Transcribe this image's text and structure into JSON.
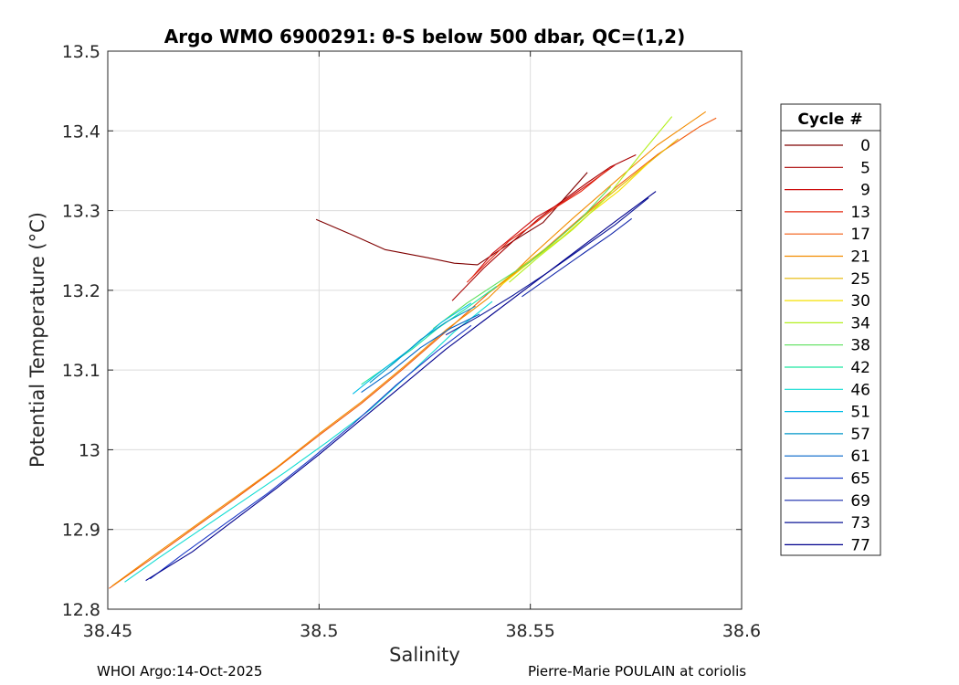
{
  "chart_data": {
    "type": "line",
    "title": "Argo WMO 6900291: θ-S below 500 dbar,  QC=(1,2)",
    "xlabel": "Salinity",
    "ylabel": "Potential Temperature (°C)",
    "xlim": [
      38.45,
      38.6
    ],
    "ylim": [
      12.8,
      13.5
    ],
    "xticks": [
      "38.45",
      "38.5",
      "38.55",
      "38.6"
    ],
    "yticks": [
      "12.8",
      "12.9",
      "13",
      "13.1",
      "13.2",
      "13.3",
      "13.4",
      "13.5"
    ],
    "grid": true,
    "legend": {
      "title": "Cycle #",
      "placement": "right-outside",
      "entries": [
        {
          "label": "0",
          "color": "#7f0000"
        },
        {
          "label": "5",
          "color": "#a80000"
        },
        {
          "label": "9",
          "color": "#cc0a0a"
        },
        {
          "label": "13",
          "color": "#e62810"
        },
        {
          "label": "17",
          "color": "#f25c10"
        },
        {
          "label": "21",
          "color": "#f28c00"
        },
        {
          "label": "25",
          "color": "#e6b800"
        },
        {
          "label": "30",
          "color": "#f5e000"
        },
        {
          "label": "34",
          "color": "#b4f020"
        },
        {
          "label": "38",
          "color": "#5ae05a"
        },
        {
          "label": "42",
          "color": "#1ee6a0"
        },
        {
          "label": "46",
          "color": "#10dcd2"
        },
        {
          "label": "51",
          "color": "#00bee6"
        },
        {
          "label": "57",
          "color": "#0096c8"
        },
        {
          "label": "61",
          "color": "#0064c8"
        },
        {
          "label": "65",
          "color": "#1e3cc8"
        },
        {
          "label": "69",
          "color": "#1428aa"
        },
        {
          "label": "73",
          "color": "#0a1496"
        },
        {
          "label": "77",
          "color": "#00008c"
        }
      ]
    },
    "series": [
      {
        "name": "0",
        "color": "#7f0000",
        "x": [
          38.4993,
          38.5085,
          38.5156,
          38.5256,
          38.532,
          38.5375,
          38.546,
          38.553,
          38.5635
        ],
        "y": [
          13.289,
          13.268,
          13.251,
          13.241,
          13.234,
          13.232,
          13.262,
          13.285,
          13.348
        ]
      },
      {
        "name": "5",
        "color": "#a80000",
        "x": [
          38.5315,
          38.539,
          38.546,
          38.552,
          38.557,
          38.5635,
          38.569,
          38.575
        ],
        "y": [
          13.187,
          13.228,
          13.262,
          13.29,
          13.31,
          13.335,
          13.355,
          13.37
        ]
      },
      {
        "name": "9",
        "color": "#cc0a0a",
        "x": [
          38.536,
          38.541,
          38.546,
          38.5515,
          38.558,
          38.564,
          38.57
        ],
        "y": [
          13.215,
          13.246,
          13.268,
          13.292,
          13.312,
          13.334,
          13.357
        ]
      },
      {
        "name": "13",
        "color": "#e62810",
        "x": [
          38.535,
          38.54,
          38.545,
          38.55,
          38.556,
          38.562,
          38.5685
        ],
        "y": [
          13.21,
          13.236,
          13.262,
          13.28,
          13.304,
          13.324,
          13.352
        ]
      },
      {
        "name": "17",
        "color": "#f25c10",
        "x": [
          38.4503,
          38.46,
          38.47,
          38.48,
          38.49,
          38.5,
          38.51,
          38.52,
          38.53,
          38.54,
          38.55,
          38.56,
          38.57,
          38.58,
          38.59,
          38.594
        ],
        "y": [
          12.826,
          12.862,
          12.9,
          12.938,
          12.977,
          13.018,
          13.058,
          13.102,
          13.148,
          13.196,
          13.236,
          13.282,
          13.328,
          13.37,
          13.405,
          13.416
        ]
      },
      {
        "name": "21",
        "color": "#f28c00",
        "x": [
          38.451,
          38.46,
          38.47,
          38.48,
          38.49,
          38.5,
          38.51,
          38.52,
          38.53,
          38.54,
          38.55,
          38.56,
          38.57,
          38.58,
          38.5915
        ],
        "y": [
          12.829,
          12.864,
          12.902,
          12.94,
          12.978,
          13.02,
          13.06,
          13.104,
          13.15,
          13.19,
          13.242,
          13.29,
          13.336,
          13.382,
          13.424
        ]
      },
      {
        "name": "25",
        "color": "#e6b800",
        "x": [
          38.54,
          38.548,
          38.555,
          38.562,
          38.57,
          38.578,
          38.585
        ],
        "y": [
          13.196,
          13.23,
          13.258,
          13.29,
          13.325,
          13.36,
          13.39
        ]
      },
      {
        "name": "30",
        "color": "#f5e000",
        "x": [
          38.543,
          38.55,
          38.557,
          38.564,
          38.571,
          38.578
        ],
        "y": [
          13.206,
          13.236,
          13.264,
          13.296,
          13.325,
          13.36
        ]
      },
      {
        "name": "34",
        "color": "#b4f020",
        "x": [
          38.545,
          38.552,
          38.56,
          38.568,
          38.576,
          38.5835
        ],
        "y": [
          13.21,
          13.242,
          13.276,
          13.316,
          13.37,
          13.418
        ]
      },
      {
        "name": "38",
        "color": "#5ae05a",
        "x": [
          38.527,
          38.535,
          38.543,
          38.55,
          38.556,
          38.562,
          38.569
        ],
        "y": [
          13.152,
          13.184,
          13.212,
          13.236,
          13.262,
          13.29,
          13.33
        ]
      },
      {
        "name": "42",
        "color": "#1ee6a0",
        "x": [
          38.51,
          38.516,
          38.522,
          38.528,
          38.535,
          38.542
        ],
        "y": [
          13.082,
          13.104,
          13.126,
          13.152,
          13.178,
          13.205
        ]
      },
      {
        "name": "46",
        "color": "#10dcd2",
        "x": [
          38.454,
          38.462,
          38.472,
          38.482,
          38.492,
          38.502,
          38.512,
          38.522,
          38.532,
          38.541
        ],
        "y": [
          12.834,
          12.864,
          12.9,
          12.936,
          12.972,
          13.01,
          13.05,
          13.098,
          13.148,
          13.186
        ]
      },
      {
        "name": "51",
        "color": "#00bee6",
        "x": [
          38.508,
          38.515,
          38.522,
          38.529,
          38.536
        ],
        "y": [
          13.07,
          13.1,
          13.128,
          13.16,
          13.184
        ]
      },
      {
        "name": "57",
        "color": "#0096c8",
        "x": [
          38.512,
          38.518,
          38.524,
          38.53,
          38.537
        ],
        "y": [
          13.084,
          13.11,
          13.138,
          13.16,
          13.18
        ]
      },
      {
        "name": "61",
        "color": "#0064c8",
        "x": [
          38.51,
          38.517,
          38.524,
          38.531,
          38.538
        ],
        "y": [
          13.072,
          13.098,
          13.128,
          13.152,
          13.17
        ]
      },
      {
        "name": "65",
        "color": "#1e3cc8",
        "x": [
          38.46,
          38.468,
          38.478,
          38.488,
          38.498,
          38.508,
          38.518,
          38.528,
          38.536
        ],
        "y": [
          12.838,
          12.87,
          12.908,
          12.946,
          12.988,
          13.032,
          13.08,
          13.124,
          13.156
        ]
      },
      {
        "name": "69",
        "color": "#1428aa",
        "x": [
          38.548,
          38.556,
          38.563,
          38.569,
          38.574
        ],
        "y": [
          13.192,
          13.222,
          13.248,
          13.27,
          13.29
        ]
      },
      {
        "name": "73",
        "color": "#0a1496",
        "x": [
          38.53,
          38.538,
          38.546,
          38.554,
          38.562,
          38.57,
          38.578
        ],
        "y": [
          13.144,
          13.168,
          13.194,
          13.222,
          13.252,
          13.282,
          13.316
        ]
      },
      {
        "name": "77",
        "color": "#00008c",
        "x": [
          38.459,
          38.47,
          38.48,
          38.49,
          38.5,
          38.51,
          38.52,
          38.53,
          38.54,
          38.55,
          38.56,
          38.57,
          38.5797
        ],
        "y": [
          12.836,
          12.872,
          12.912,
          12.952,
          12.994,
          13.038,
          13.082,
          13.126,
          13.166,
          13.206,
          13.246,
          13.286,
          13.324
        ]
      }
    ]
  },
  "footer": {
    "left": "WHOI Argo:14-Oct-2025",
    "right": "Pierre-Marie POULAIN at coriolis"
  }
}
